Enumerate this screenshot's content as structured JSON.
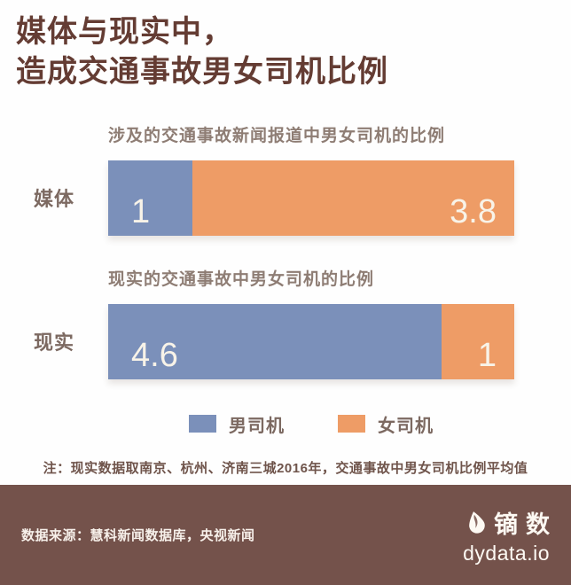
{
  "header": {
    "title_line1": "媒体与现实中，",
    "title_line2": "造成交通事故男女司机比例"
  },
  "chart_data": [
    {
      "type": "bar",
      "orientation": "horizontal",
      "stacked": true,
      "normalized": true,
      "title": "涉及的交通事故新闻报道中男女司机的比例",
      "category": "媒体",
      "series": [
        {
          "name": "男司机",
          "value": 1,
          "value_label": "1",
          "color": "#7b90ba"
        },
        {
          "name": "女司机",
          "value": 3.8,
          "value_label": "3.8",
          "color": "#ee9c66"
        }
      ]
    },
    {
      "type": "bar",
      "orientation": "horizontal",
      "stacked": true,
      "normalized": true,
      "title": "现实的交通事故中男女司机的比例",
      "category": "现实",
      "series": [
        {
          "name": "男司机",
          "value": 4.6,
          "value_label": "4.6",
          "color": "#7b90ba"
        },
        {
          "name": "女司机",
          "value": 1,
          "value_label": "1",
          "color": "#ee9c66"
        }
      ]
    }
  ],
  "legend": {
    "position": "bottom-center",
    "items": [
      {
        "label": "男司机",
        "color": "#7b90ba"
      },
      {
        "label": "女司机",
        "color": "#ee9c66"
      }
    ]
  },
  "note": "注：现实数据取南京、杭州、济南三城2016年，交通事故中男女司机比例平均值",
  "footer": {
    "source": "数据来源：慧科新闻数据库，央视新闻",
    "brand_name": "镝数",
    "brand_url": "dydata.io",
    "brand_icon": "droplet-icon"
  },
  "colors": {
    "male_blue": "#7b90ba",
    "female_orange": "#ee9c66",
    "title_brown": "#643c33",
    "muted_text": "#8e7d74",
    "note_text": "#6f544b",
    "bar_value_text": "#f8f3e8",
    "footer_background": "#74524b",
    "footer_text": "#f7f0ea",
    "page_background": "#fefefe"
  }
}
